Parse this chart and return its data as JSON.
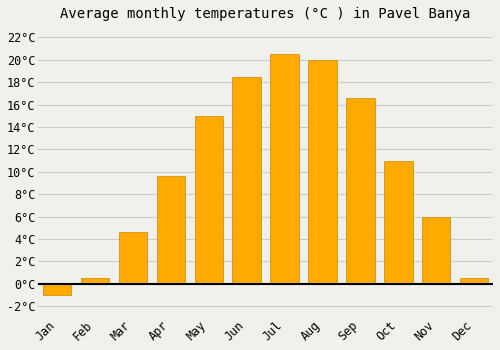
{
  "title": "Average monthly temperatures (°C ) in Pavel Banya",
  "months": [
    "Jan",
    "Feb",
    "Mar",
    "Apr",
    "May",
    "Jun",
    "Jul",
    "Aug",
    "Sep",
    "Oct",
    "Nov",
    "Dec"
  ],
  "values": [
    -1.0,
    0.5,
    4.6,
    9.6,
    15.0,
    18.5,
    20.5,
    20.0,
    16.6,
    11.0,
    6.0,
    0.5
  ],
  "bar_color": "#FFAA00",
  "bar_edge_color": "#CC8800",
  "background_color": "#F0F0EC",
  "ylim": [
    -3,
    23
  ],
  "yticks": [
    -2,
    0,
    2,
    4,
    6,
    8,
    10,
    12,
    14,
    16,
    18,
    20,
    22
  ],
  "title_fontsize": 10,
  "tick_fontsize": 8.5,
  "grid_color": "#CCCCCC",
  "fig_width": 5.0,
  "fig_height": 3.5,
  "dpi": 100
}
